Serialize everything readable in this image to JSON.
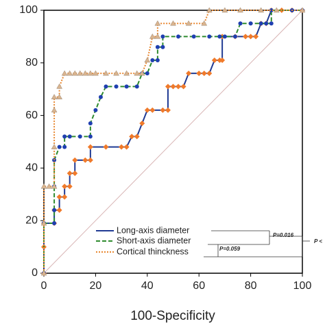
{
  "chart_data": {
    "type": "line",
    "xlabel": "100-Specificity",
    "xlim": [
      0,
      100
    ],
    "ylim": [
      0,
      100
    ],
    "xticks": [
      0,
      20,
      40,
      60,
      80,
      100
    ],
    "yticks": [
      0,
      20,
      40,
      60,
      80,
      100
    ],
    "series": [
      {
        "name": "Long-axis diameter",
        "color": "#1f3a93",
        "marker_color": "#f07a2a",
        "marker": "diamond",
        "dash": "solid",
        "x": [
          0,
          0,
          0,
          4,
          4,
          6,
          6,
          8,
          8,
          10,
          10,
          12,
          12,
          16,
          18,
          18,
          24,
          30,
          32,
          34,
          36,
          38,
          40,
          42,
          46,
          48,
          48,
          50,
          52,
          54,
          56,
          60,
          62,
          64,
          66,
          68,
          69,
          69,
          74,
          78,
          80,
          82,
          84,
          86,
          88,
          92,
          96,
          100
        ],
        "values": [
          0,
          10,
          19,
          19,
          24,
          24,
          29,
          29,
          33,
          33,
          38,
          38,
          43,
          43,
          43,
          48,
          48,
          48,
          48,
          52,
          52,
          57,
          62,
          62,
          62,
          62,
          71,
          71,
          71,
          71,
          76,
          76,
          76,
          76,
          81,
          81,
          81,
          90,
          90,
          90,
          90,
          90,
          95,
          95,
          100,
          100,
          100,
          100
        ]
      },
      {
        "name": "Short-axis diameter",
        "color": "#2e8b2e",
        "marker_color": "#1f3fb0",
        "marker": "circle",
        "dash": "dashed",
        "x": [
          0,
          0,
          4,
          4,
          4,
          4,
          6,
          8,
          8,
          10,
          14,
          18,
          18,
          20,
          22,
          24,
          28,
          32,
          36,
          38,
          40,
          42,
          44,
          44,
          46,
          46,
          52,
          58,
          64,
          68,
          70,
          74,
          76,
          80,
          84,
          86,
          88,
          88,
          96,
          100
        ],
        "values": [
          0,
          19,
          19,
          24,
          33,
          43,
          48,
          48,
          52,
          52,
          52,
          52,
          57,
          62,
          67,
          71,
          71,
          71,
          71,
          76,
          76,
          81,
          81,
          86,
          86,
          90,
          90,
          90,
          90,
          90,
          90,
          90,
          95,
          95,
          95,
          95,
          95,
          100,
          100,
          100
        ]
      },
      {
        "name": "Cortical thinckness",
        "color": "#e8862e",
        "marker_color": "#d9b48f",
        "marker": "triangle",
        "dash": "dotted",
        "x": [
          0,
          0,
          0,
          2,
          4,
          4,
          4,
          4,
          6,
          6,
          8,
          10,
          12,
          14,
          16,
          18,
          20,
          24,
          28,
          32,
          36,
          38,
          40,
          42,
          44,
          44,
          50,
          56,
          62,
          64,
          70,
          76,
          84,
          90,
          100
        ],
        "values": [
          0,
          19,
          33,
          33,
          33,
          48,
          62,
          67,
          67,
          71,
          76,
          76,
          76,
          76,
          76,
          76,
          76,
          76,
          76,
          76,
          76,
          76,
          81,
          90,
          90,
          95,
          95,
          95,
          95,
          100,
          100,
          100,
          100,
          100,
          100
        ]
      }
    ],
    "annotations": [
      "P=0.016",
      "P=0.059",
      "P <"
    ]
  }
}
